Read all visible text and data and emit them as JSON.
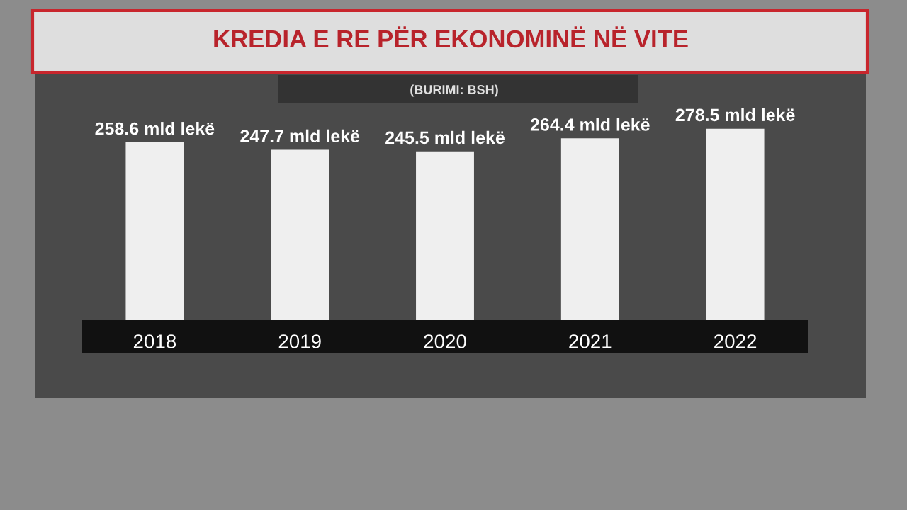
{
  "chart_data": {
    "type": "bar",
    "title": "KREDIA E RE PËR EKONOMINË NË VITE",
    "categories": [
      "2018",
      "2019",
      "2020",
      "2021",
      "2022"
    ],
    "values": [
      258.6,
      247.7,
      245.5,
      264.4,
      278.5
    ],
    "value_labels": [
      "258.6 mld lekë",
      "247.7 mld lekë",
      "245.5 mld lekë",
      "264.4 mld lekë",
      "278.5 mld lekë"
    ],
    "color": "#efefef",
    "annotations": [
      "(BURIMI: BSH)"
    ]
  }
}
